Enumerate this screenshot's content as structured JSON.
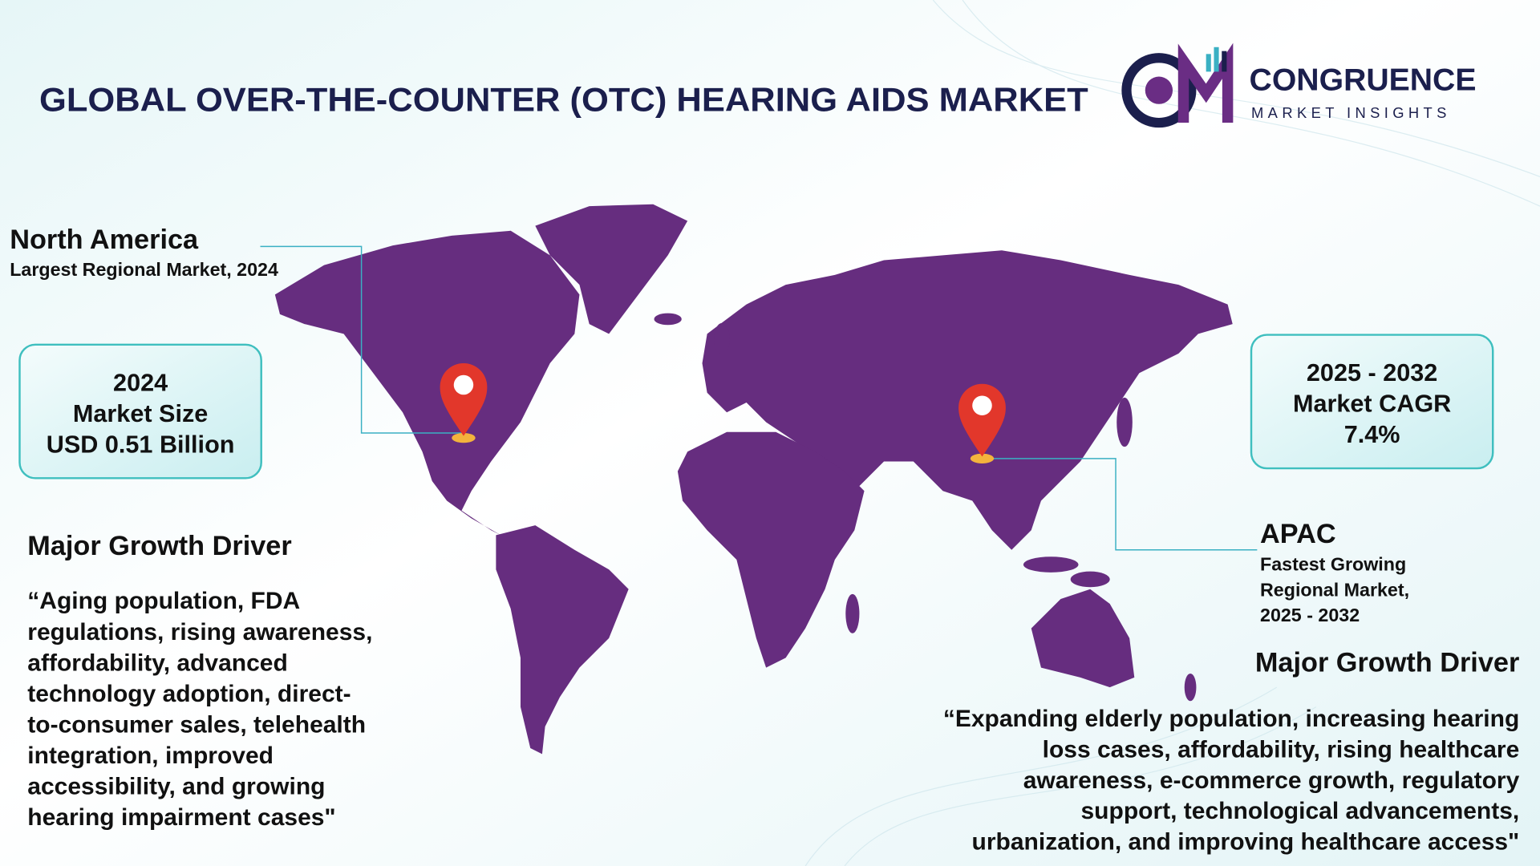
{
  "header": {
    "title": "GLOBAL OVER-THE-COUNTER (OTC) HEARING AIDS MARKET"
  },
  "logo": {
    "name": "CONGRUENCE",
    "tagline": "MARKET INSIGHTS"
  },
  "north_america": {
    "title": "North America",
    "subtitle": "Largest Regional Market, 2024"
  },
  "market_size": {
    "lines": [
      "2024",
      "Market Size",
      "USD 0.51 Billion"
    ]
  },
  "cagr": {
    "lines": [
      "2025 - 2032",
      "Market CAGR",
      "7.4%"
    ]
  },
  "apac": {
    "title": "APAC",
    "subtitle_lines": [
      "Fastest Growing",
      "Regional Market,",
      "2025 - 2032"
    ]
  },
  "left_driver": {
    "heading": "Major Growth Driver",
    "lines": [
      "“Aging population, FDA",
      "regulations, rising awareness,",
      "affordability, advanced",
      "technology adoption, direct-",
      "to-consumer sales, telehealth",
      "integration, improved",
      "accessibility, and growing",
      "hearing impairment cases\""
    ]
  },
  "right_driver": {
    "heading": "Major Growth Driver",
    "lines": [
      "“Expanding elderly population, increasing hearing",
      "loss cases, affordability, rising healthcare",
      "awareness, e-commerce growth, regulatory",
      "support, technological advancements,",
      "urbanization, and improving healthcare access\""
    ]
  }
}
